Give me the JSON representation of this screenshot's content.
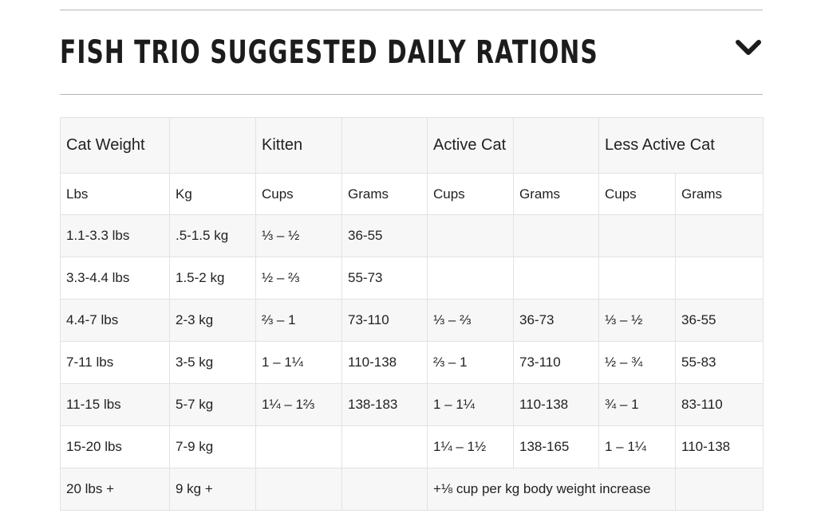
{
  "section": {
    "title": "FISH TRIO SUGGESTED DAILY RATIONS",
    "toggle_icon": "chevron-down-icon"
  },
  "table": {
    "group_headers": {
      "cat_weight": "Cat Weight",
      "kitten": "Kitten",
      "active_cat": "Active Cat",
      "less_active_cat": "Less Active Cat"
    },
    "sub_headers": {
      "lbs": "Lbs",
      "kg": "Kg",
      "kitten_cups": "Cups",
      "kitten_grams": "Grams",
      "active_cups": "Cups",
      "active_grams": "Grams",
      "less_active_cups": "Cups",
      "less_active_grams": "Grams"
    },
    "rows": [
      {
        "lbs": "1.1-3.3 lbs",
        "kg": ".5-1.5 kg",
        "kitten_cups": "⅓ – ½",
        "kitten_grams": "36-55",
        "active_cups": "",
        "active_grams": "",
        "less_active_cups": "",
        "less_active_grams": ""
      },
      {
        "lbs": "3.3-4.4 lbs",
        "kg": "1.5-2 kg",
        "kitten_cups": "½  – ⅔",
        "kitten_grams": "55-73",
        "active_cups": "",
        "active_grams": "",
        "less_active_cups": "",
        "less_active_grams": ""
      },
      {
        "lbs": "4.4-7 lbs",
        "kg": "2-3 kg",
        "kitten_cups": "⅔ – 1",
        "kitten_grams": "73-110",
        "active_cups": "⅓ – ⅔",
        "active_grams": "36-73",
        "less_active_cups": "⅓ – ½",
        "less_active_grams": "36-55"
      },
      {
        "lbs": "7-11 lbs",
        "kg": "3-5 kg",
        "kitten_cups": "1 – 1¼",
        "kitten_grams": "110-138",
        "active_cups": "⅔ – 1",
        "active_grams": "73-110",
        "less_active_cups": "½  – ¾",
        "less_active_grams": "55-83"
      },
      {
        "lbs": "11-15 lbs",
        "kg": "5-7 kg",
        "kitten_cups": "1¼ – 1⅔",
        "kitten_grams": "138-183",
        "active_cups": "1 – 1¼",
        "active_grams": "110-138",
        "less_active_cups": "¾  – 1",
        "less_active_grams": "83-110"
      },
      {
        "lbs": "15-20 lbs",
        "kg": "7-9 kg",
        "kitten_cups": "",
        "kitten_grams": "",
        "active_cups": "1¼ – 1½",
        "active_grams": "138-165",
        "less_active_cups": "1 – 1¼",
        "less_active_grams": "110-138"
      }
    ],
    "last_row": {
      "lbs": "20 lbs +",
      "kg": "9 kg +",
      "kitten_cups": "",
      "kitten_grams": "",
      "note": "+⅛ cup per kg body weight increase",
      "less_active_grams": ""
    }
  }
}
